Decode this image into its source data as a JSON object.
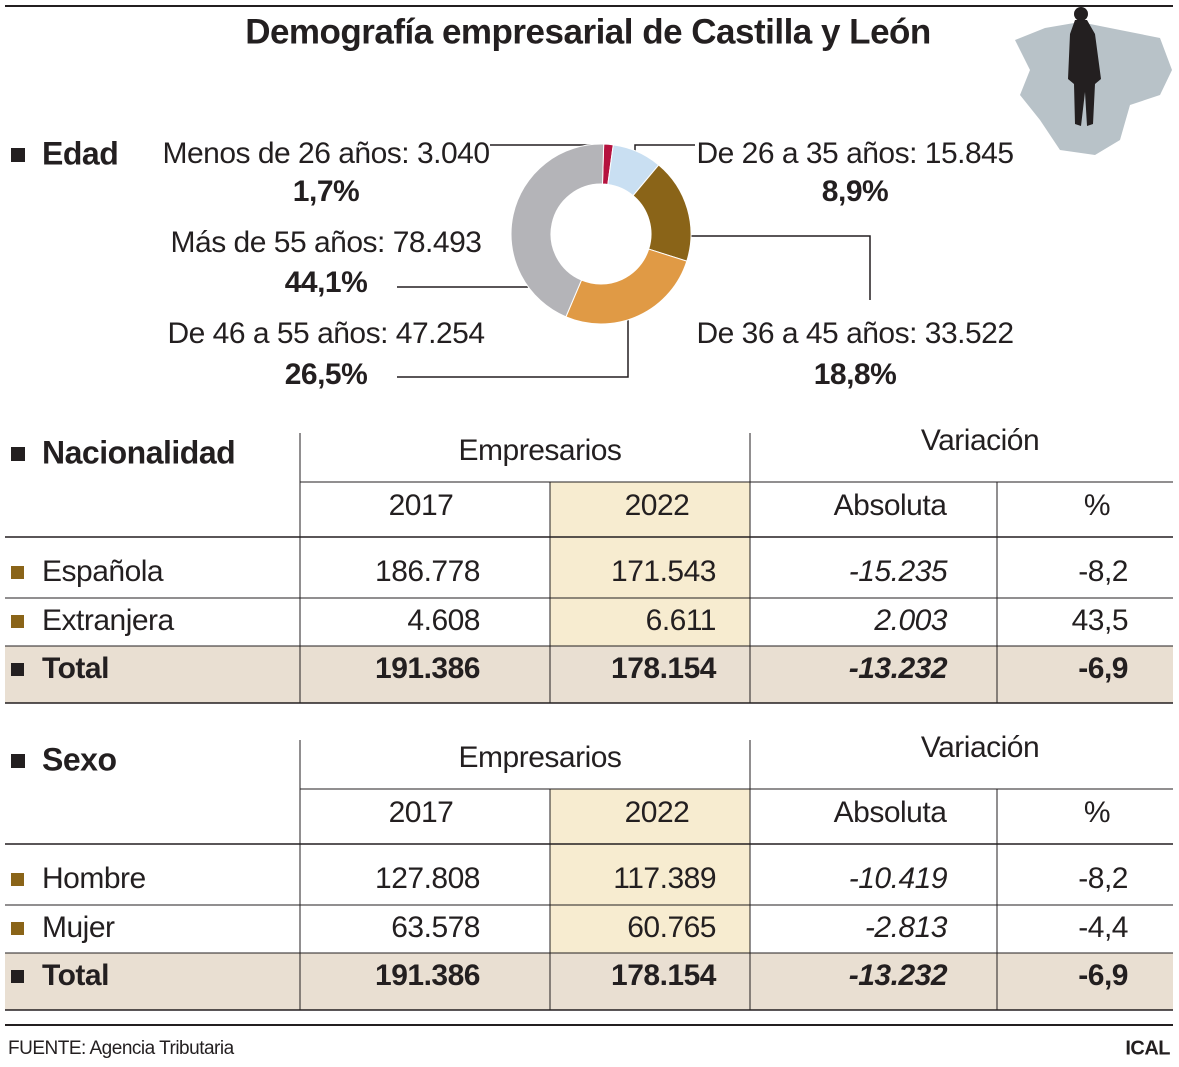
{
  "title": "Demografía empresarial de Castilla y León",
  "chart_data": {
    "type": "donut",
    "label": "Edad",
    "categories": [
      "Menos de 26 años: 3.040",
      "De 26 a 35 años: 15.845",
      "De 36 a 45 años: 33.522",
      "De 46 a 55 años: 47.254",
      "Más de 55 años: 78.493"
    ],
    "values": [
      1.7,
      8.9,
      18.8,
      26.5,
      44.1
    ],
    "value_labels": [
      "1,7%",
      "8,9%",
      "18,8%",
      "26,5%",
      "44,1%"
    ],
    "colors": [
      "#b5123e",
      "#c9dff2",
      "#8a6418",
      "#e09a45",
      "#b4b4b8"
    ]
  },
  "tables": [
    {
      "title": "Nacionalidad",
      "groups": [
        "Empresarios",
        "Variación"
      ],
      "columns": [
        "2017",
        "2022",
        "Absoluta",
        "%"
      ],
      "rows": [
        [
          "Española",
          "186.778",
          "171.543",
          "-15.235",
          "-8,2"
        ],
        [
          "Extranjera",
          "4.608",
          "6.611",
          "2.003",
          "43,5"
        ]
      ],
      "total": [
        "Total",
        "191.386",
        "178.154",
        "-13.232",
        "-6,9"
      ]
    },
    {
      "title": "Sexo",
      "groups": [
        "Empresarios",
        "Variación"
      ],
      "columns": [
        "2017",
        "2022",
        "Absoluta",
        "%"
      ],
      "rows": [
        [
          "Hombre",
          "127.808",
          "117.389",
          "-10.419",
          "-8,2"
        ],
        [
          "Mujer",
          "63.578",
          "60.765",
          "-2.813",
          "-4,4"
        ]
      ],
      "total": [
        "Total",
        "191.386",
        "178.154",
        "-13.232",
        "-6,9"
      ]
    }
  ],
  "footer": {
    "source": "FUENTE: Agencia Tributaria",
    "brand": "ICAL"
  }
}
